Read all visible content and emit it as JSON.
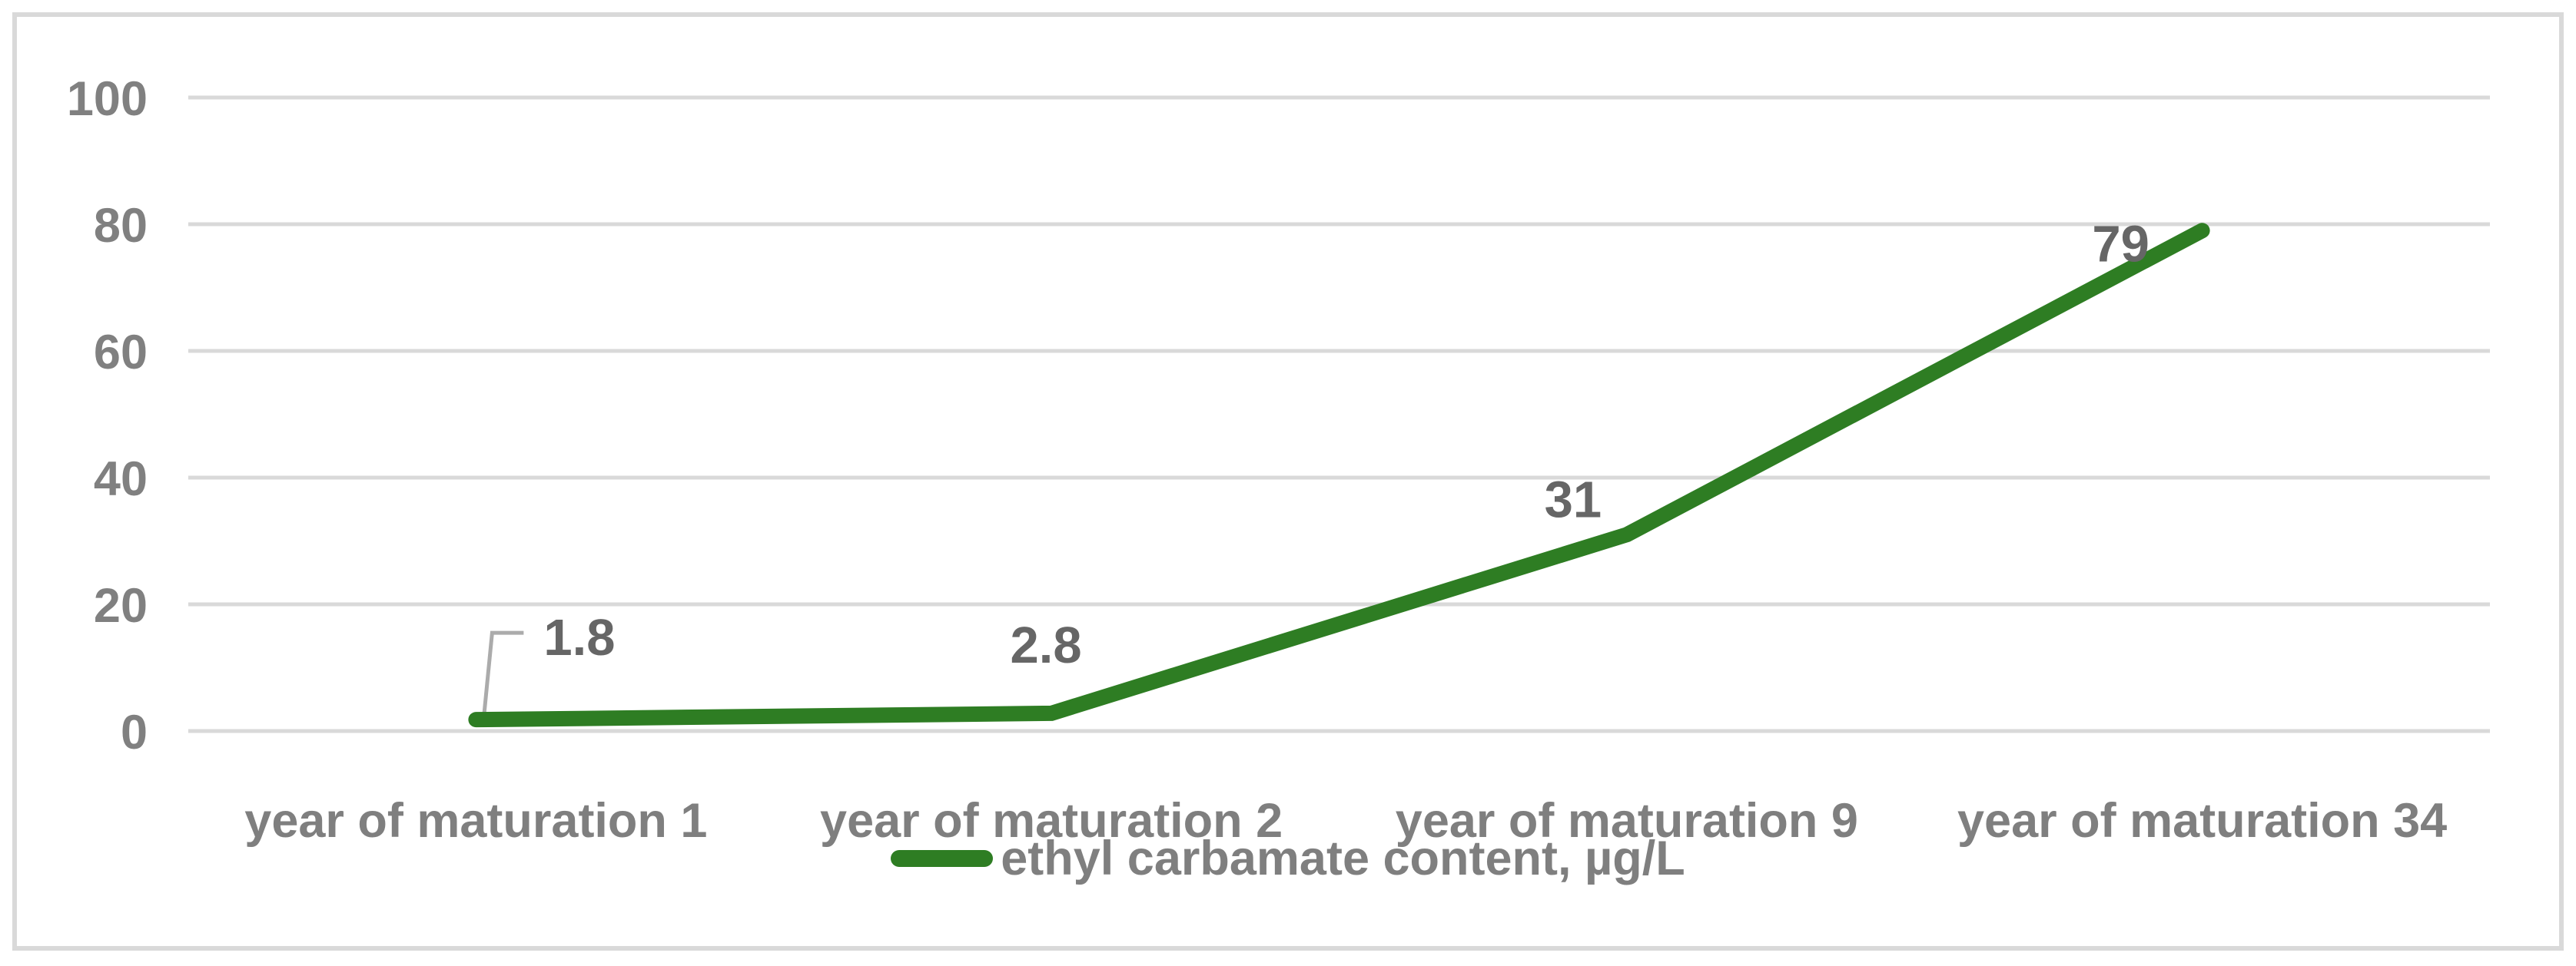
{
  "chart_data": {
    "type": "line",
    "categories": [
      "year of maturation 1",
      "year of maturation 2",
      "year of maturation 9",
      "year of maturation 34"
    ],
    "series": [
      {
        "name": "ethyl carbamate content, µg/L",
        "values": [
          1.8,
          2.8,
          31,
          79
        ],
        "data_labels": [
          "1.8",
          "2.8",
          "31",
          "79"
        ],
        "color": "#2e7d23"
      }
    ],
    "title": "",
    "xlabel": "",
    "ylabel": "",
    "ylim": [
      0,
      100
    ],
    "yticks": [
      0,
      20,
      40,
      60,
      80,
      100
    ],
    "grid": true,
    "legend_position": "bottom-center"
  },
  "legend": {
    "label": "ethyl carbamate content, µg/L"
  },
  "colors": {
    "line": "#2e7d23",
    "grid": "#d9d9d9",
    "frame_border": "#d9d9d9",
    "axis_text": "#808080",
    "category_text": "#7f7f7f",
    "data_label_text": "#666666",
    "leader_line": "#ababab",
    "background": "#ffffff"
  }
}
